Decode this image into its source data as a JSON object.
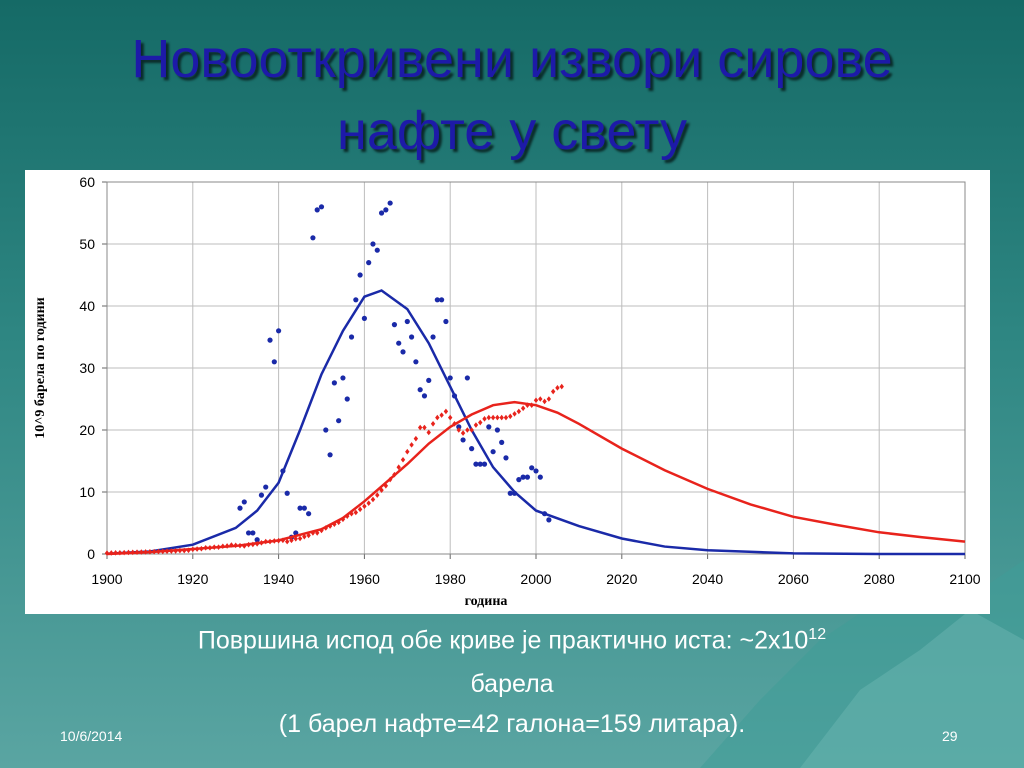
{
  "title": {
    "line1": "Новооткривени извори сирове",
    "line2": "нафте у свету"
  },
  "chart_data": {
    "type": "scatter",
    "ylabel": "10^9 барела по години",
    "xlabel": "година",
    "xlim": [
      1900,
      2100
    ],
    "xticks": [
      1900,
      1920,
      1940,
      1960,
      1980,
      2000,
      2020,
      2040,
      2060,
      2080,
      2100
    ],
    "ylim": [
      0,
      60
    ],
    "yticks": [
      0,
      10,
      20,
      30,
      40,
      50,
      60
    ],
    "grid": true,
    "series": [
      {
        "type": "scatter",
        "color": "#1a2aa8",
        "x": [
          1931,
          1932,
          1933,
          1934,
          1935,
          1936,
          1937,
          1938,
          1939,
          1940,
          1941,
          1942,
          1943,
          1944,
          1945,
          1946,
          1947,
          1948,
          1949,
          1950,
          1951,
          1952,
          1953,
          1954,
          1955,
          1956,
          1957,
          1958,
          1959,
          1960,
          1961,
          1962,
          1963,
          1964,
          1965,
          1966,
          1967,
          1968,
          1969,
          1970,
          1971,
          1972,
          1973,
          1974,
          1975,
          1976,
          1977,
          1978,
          1979,
          1980,
          1981,
          1982,
          1983,
          1984,
          1985,
          1986,
          1987,
          1988,
          1989,
          1990,
          1991,
          1992,
          1993,
          1994,
          1995,
          1996,
          1997,
          1998,
          1999,
          2000,
          2001,
          2002,
          2003
        ],
        "values": [
          7.4,
          8.4,
          3.4,
          3.4,
          2.3,
          9.5,
          10.8,
          34.5,
          31,
          36,
          13.4,
          9.8,
          2.7,
          3.4,
          7.4,
          7.4,
          6.5,
          51,
          55.5,
          56,
          20,
          16,
          27.6,
          21.5,
          28.4,
          25,
          35,
          41,
          45,
          38,
          47,
          50,
          49,
          55,
          55.5,
          56.6,
          37,
          34,
          32.6,
          37.5,
          35,
          31,
          26.5,
          25.5,
          28,
          35,
          41,
          41,
          37.5,
          28.4,
          25.5,
          20.5,
          18.4,
          28.4,
          17,
          14.5,
          14.5,
          14.5,
          20.5,
          16.5,
          20,
          18,
          15.5,
          9.8,
          9.8,
          12,
          12.4,
          12.4,
          13.9,
          13.4,
          12.4,
          6.5,
          5.5
        ]
      },
      {
        "type": "line",
        "color": "#1a2aa8",
        "x": [
          1900,
          1910,
          1920,
          1930,
          1935,
          1940,
          1945,
          1950,
          1955,
          1960,
          1964,
          1970,
          1975,
          1980,
          1985,
          1990,
          1995,
          2000,
          2010,
          2020,
          2030,
          2040,
          2060,
          2080,
          2100
        ],
        "values": [
          0.05,
          0.4,
          1.5,
          4.2,
          7,
          11.5,
          20,
          29,
          36,
          41.5,
          42.5,
          39.5,
          34,
          27,
          20,
          14,
          10,
          7,
          4.5,
          2.5,
          1.2,
          0.6,
          0.1,
          0,
          0
        ]
      },
      {
        "type": "line",
        "color": "#e8231c",
        "x": [
          1900,
          1910,
          1920,
          1930,
          1940,
          1950,
          1955,
          1960,
          1965,
          1970,
          1975,
          1980,
          1985,
          1990,
          1995,
          2000,
          2005,
          2010,
          2020,
          2030,
          2040,
          2050,
          2060,
          2070,
          2080,
          2090,
          2100
        ],
        "values": [
          0,
          0.3,
          0.8,
          1.3,
          2.2,
          4,
          5.8,
          8.5,
          11.5,
          14.5,
          17.8,
          20.5,
          22.5,
          24,
          24.5,
          24,
          22.8,
          21,
          17,
          13.5,
          10.5,
          8,
          6,
          4.7,
          3.5,
          2.7,
          2
        ]
      },
      {
        "type": "scatter",
        "marker": "diamond",
        "color": "#e8231c",
        "x": [
          1900,
          1901,
          1902,
          1903,
          1904,
          1905,
          1906,
          1907,
          1908,
          1909,
          1910,
          1911,
          1912,
          1913,
          1914,
          1915,
          1916,
          1917,
          1918,
          1919,
          1920,
          1921,
          1922,
          1923,
          1924,
          1925,
          1926,
          1927,
          1928,
          1929,
          1930,
          1931,
          1932,
          1933,
          1934,
          1935,
          1936,
          1937,
          1938,
          1939,
          1940,
          1941,
          1942,
          1943,
          1944,
          1945,
          1946,
          1947,
          1948,
          1949,
          1950,
          1951,
          1952,
          1953,
          1954,
          1955,
          1956,
          1957,
          1958,
          1959,
          1960,
          1961,
          1962,
          1963,
          1964,
          1965,
          1966,
          1967,
          1968,
          1969,
          1970,
          1971,
          1972,
          1973,
          1974,
          1975,
          1976,
          1977,
          1978,
          1979,
          1980,
          1981,
          1982,
          1983,
          1984,
          1985,
          1986,
          1987,
          1988,
          1989,
          1990,
          1991,
          1992,
          1993,
          1994,
          1995,
          1996,
          1997,
          1998,
          1999,
          2000,
          2001,
          2002,
          2003,
          2004,
          2005,
          2006
        ],
        "values": [
          0.15,
          0.17,
          0.19,
          0.2,
          0.22,
          0.25,
          0.27,
          0.29,
          0.31,
          0.33,
          0.36,
          0.38,
          0.4,
          0.42,
          0.45,
          0.48,
          0.5,
          0.55,
          0.55,
          0.6,
          0.75,
          0.8,
          0.85,
          1.0,
          1.0,
          1.1,
          1.1,
          1.25,
          1.3,
          1.45,
          1.4,
          1.35,
          1.3,
          1.5,
          1.55,
          1.65,
          1.8,
          2.0,
          2.0,
          2.1,
          2.15,
          2.2,
          2.0,
          2.2,
          2.45,
          2.5,
          2.8,
          3.0,
          3.4,
          3.4,
          3.8,
          4.2,
          4.5,
          4.8,
          5.1,
          5.6,
          6.1,
          6.5,
          6.7,
          7.2,
          7.7,
          8.2,
          8.8,
          9.5,
          10.3,
          11.0,
          12.0,
          12.8,
          14.0,
          15.2,
          16.5,
          17.6,
          18.6,
          20.4,
          20.4,
          19.6,
          21.0,
          22.0,
          22.4,
          23.0,
          22.0,
          21.0,
          20.0,
          19.5,
          20.0,
          20.0,
          20.8,
          21.2,
          21.8,
          22.0,
          22.0,
          22.0,
          22.0,
          22.0,
          22.2,
          22.6,
          23.0,
          23.5,
          24.0,
          24.0,
          24.8,
          25.0,
          24.6,
          25.0,
          26.2,
          26.8,
          27.0
        ]
      }
    ]
  },
  "caption": {
    "line1": "Површина испод обе криве је практично иста: ~2x10",
    "sup": "12",
    "line2": "барела",
    "line3": "(1 барел нафте=42 галона=159 литара)."
  },
  "footer": {
    "date": "10/6/2014",
    "page": "29"
  }
}
